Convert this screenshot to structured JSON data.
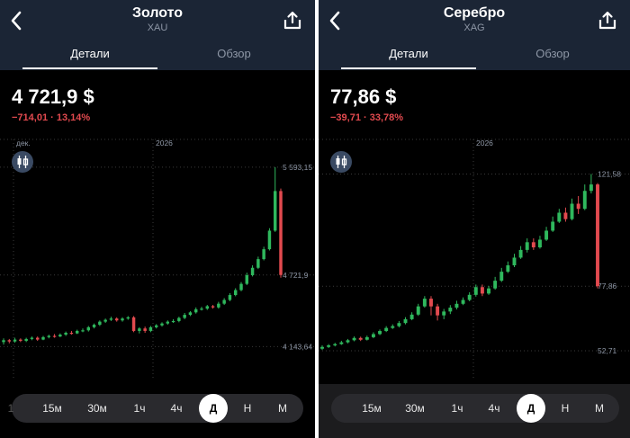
{
  "panels": [
    {
      "header": {
        "title": "Золото",
        "subtitle": "XAU"
      },
      "tabs": [
        "Детали",
        "Обзор"
      ],
      "price": "4 721,9 $",
      "change": "−714,01 · 13,14%",
      "timeframes": [
        "15м",
        "30м",
        "1ч",
        "4ч",
        "Д",
        "Н",
        "М"
      ],
      "active_timeframe": "Д",
      "chart_data": {
        "type": "candlestick",
        "x_labels": [
          "дек.",
          "2026"
        ],
        "y_labels": [
          "5 593,15",
          "4 721,9",
          "4 143,64"
        ],
        "ylim": [
          3950,
          5650
        ],
        "candles": [
          [
            4180,
            4195,
            4160,
            4210
          ],
          [
            4195,
            4185,
            4170,
            4205
          ],
          [
            4185,
            4200,
            4175,
            4215
          ],
          [
            4200,
            4190,
            4180,
            4210
          ],
          [
            4190,
            4205,
            4180,
            4215
          ],
          [
            4205,
            4215,
            4195,
            4225
          ],
          [
            4215,
            4200,
            4190,
            4225
          ],
          [
            4200,
            4220,
            4195,
            4230
          ],
          [
            4220,
            4230,
            4210,
            4240
          ],
          [
            4230,
            4225,
            4215,
            4245
          ],
          [
            4225,
            4240,
            4220,
            4250
          ],
          [
            4240,
            4255,
            4230,
            4265
          ],
          [
            4255,
            4250,
            4240,
            4270
          ],
          [
            4250,
            4270,
            4245,
            4280
          ],
          [
            4270,
            4275,
            4260,
            4290
          ],
          [
            4275,
            4300,
            4265,
            4310
          ],
          [
            4300,
            4320,
            4290,
            4330
          ],
          [
            4320,
            4345,
            4310,
            4355
          ],
          [
            4345,
            4360,
            4335,
            4370
          ],
          [
            4360,
            4370,
            4350,
            4385
          ],
          [
            4370,
            4355,
            4345,
            4380
          ],
          [
            4355,
            4370,
            4345,
            4380
          ],
          [
            4370,
            4380,
            4360,
            4390
          ],
          [
            4380,
            4270,
            4260,
            4390
          ],
          [
            4270,
            4290,
            4250,
            4300
          ],
          [
            4290,
            4270,
            4255,
            4305
          ],
          [
            4270,
            4300,
            4260,
            4310
          ],
          [
            4300,
            4315,
            4290,
            4325
          ],
          [
            4315,
            4330,
            4305,
            4340
          ],
          [
            4330,
            4345,
            4320,
            4355
          ],
          [
            4345,
            4350,
            4335,
            4365
          ],
          [
            4350,
            4375,
            4340,
            4385
          ],
          [
            4375,
            4400,
            4365,
            4415
          ],
          [
            4400,
            4420,
            4390,
            4430
          ],
          [
            4420,
            4445,
            4410,
            4460
          ],
          [
            4445,
            4450,
            4435,
            4465
          ],
          [
            4450,
            4470,
            4440,
            4480
          ],
          [
            4470,
            4460,
            4450,
            4480
          ],
          [
            4460,
            4490,
            4450,
            4505
          ],
          [
            4490,
            4520,
            4480,
            4535
          ],
          [
            4520,
            4560,
            4510,
            4575
          ],
          [
            4560,
            4600,
            4550,
            4615
          ],
          [
            4600,
            4650,
            4590,
            4665
          ],
          [
            4650,
            4720,
            4640,
            4740
          ],
          [
            4720,
            4780,
            4710,
            4800
          ],
          [
            4780,
            4850,
            4770,
            4870
          ],
          [
            4850,
            4930,
            4840,
            4950
          ],
          [
            4930,
            5080,
            4920,
            5100
          ],
          [
            5080,
            5400,
            5070,
            5593
          ],
          [
            5400,
            4722,
            4700,
            5420
          ]
        ]
      }
    },
    {
      "header": {
        "title": "Серебро",
        "subtitle": "XAG"
      },
      "tabs": [
        "Детали",
        "Обзор"
      ],
      "price": "77,86 $",
      "change": "−39,71 · 33,78%",
      "timeframes": [
        "15м",
        "30м",
        "1ч",
        "4ч",
        "Д",
        "Н",
        "М"
      ],
      "active_timeframe": "Д",
      "chart_data": {
        "type": "candlestick",
        "x_labels": [
          "2026"
        ],
        "y_labels": [
          "121,58",
          "77,86",
          "52,71"
        ],
        "ylim": [
          45,
          127
        ],
        "candles": [
          [
            53.5,
            54.2,
            53.0,
            54.8
          ],
          [
            54.2,
            54.8,
            53.8,
            55.3
          ],
          [
            54.8,
            55.3,
            54.4,
            55.8
          ],
          [
            55.3,
            56.0,
            55.0,
            56.6
          ],
          [
            56.0,
            56.8,
            55.6,
            57.3
          ],
          [
            56.8,
            57.7,
            56.4,
            58.3
          ],
          [
            57.7,
            57.0,
            56.5,
            58.2
          ],
          [
            57.0,
            58.0,
            56.7,
            58.6
          ],
          [
            58.0,
            59.2,
            57.6,
            59.9
          ],
          [
            59.2,
            60.4,
            58.8,
            61.0
          ],
          [
            60.4,
            61.6,
            60.0,
            62.3
          ],
          [
            61.6,
            62.3,
            61.2,
            63.0
          ],
          [
            62.3,
            63.5,
            61.8,
            64.3
          ],
          [
            63.5,
            65.0,
            63.0,
            65.8
          ],
          [
            65.0,
            66.8,
            64.6,
            67.7
          ],
          [
            66.8,
            70.0,
            66.3,
            71.0
          ],
          [
            70.0,
            73.0,
            69.5,
            74.0
          ],
          [
            73.0,
            70.0,
            66.5,
            74.0
          ],
          [
            70.0,
            66.5,
            64.5,
            71.0
          ],
          [
            66.5,
            68.0,
            65.0,
            69.0
          ],
          [
            68.0,
            69.5,
            67.0,
            70.5
          ],
          [
            69.5,
            71.0,
            68.8,
            72.2
          ],
          [
            71.0,
            72.5,
            70.5,
            73.5
          ],
          [
            72.5,
            74.5,
            72.0,
            75.5
          ],
          [
            74.5,
            77.5,
            73.8,
            78.5
          ],
          [
            77.5,
            75.0,
            74.0,
            78.5
          ],
          [
            75.0,
            77.0,
            74.5,
            78.0
          ],
          [
            77.0,
            80.0,
            76.5,
            81.5
          ],
          [
            80.0,
            83.5,
            79.5,
            85.0
          ],
          [
            83.5,
            86.0,
            83.0,
            87.5
          ],
          [
            86.0,
            89.0,
            85.3,
            90.5
          ],
          [
            89.0,
            92.0,
            88.5,
            93.5
          ],
          [
            92.0,
            95.0,
            91.0,
            96.5
          ],
          [
            95.0,
            93.0,
            92.0,
            96.5
          ],
          [
            93.0,
            96.0,
            92.5,
            97.5
          ],
          [
            96.0,
            99.5,
            95.5,
            101.0
          ],
          [
            99.5,
            103.0,
            99.0,
            105.0
          ],
          [
            103.0,
            106.5,
            102.5,
            108.0
          ],
          [
            106.5,
            104.0,
            103.0,
            108.5
          ],
          [
            104.0,
            110.0,
            103.5,
            112.0
          ],
          [
            110.0,
            108.0,
            106.0,
            113.0
          ],
          [
            108.0,
            115.0,
            107.5,
            117.5
          ],
          [
            115.0,
            117.5,
            114.0,
            121.58
          ],
          [
            117.5,
            77.86,
            77.0,
            118.0
          ]
        ]
      }
    }
  ],
  "colors": {
    "up": "#2fb85d",
    "down": "#e24a4f",
    "header_bg": "#1b2535",
    "axis_text": "#8e97a6"
  },
  "icons": {
    "back": "chevron-left-icon",
    "share": "share-icon",
    "indicator": "indicator-icon"
  }
}
